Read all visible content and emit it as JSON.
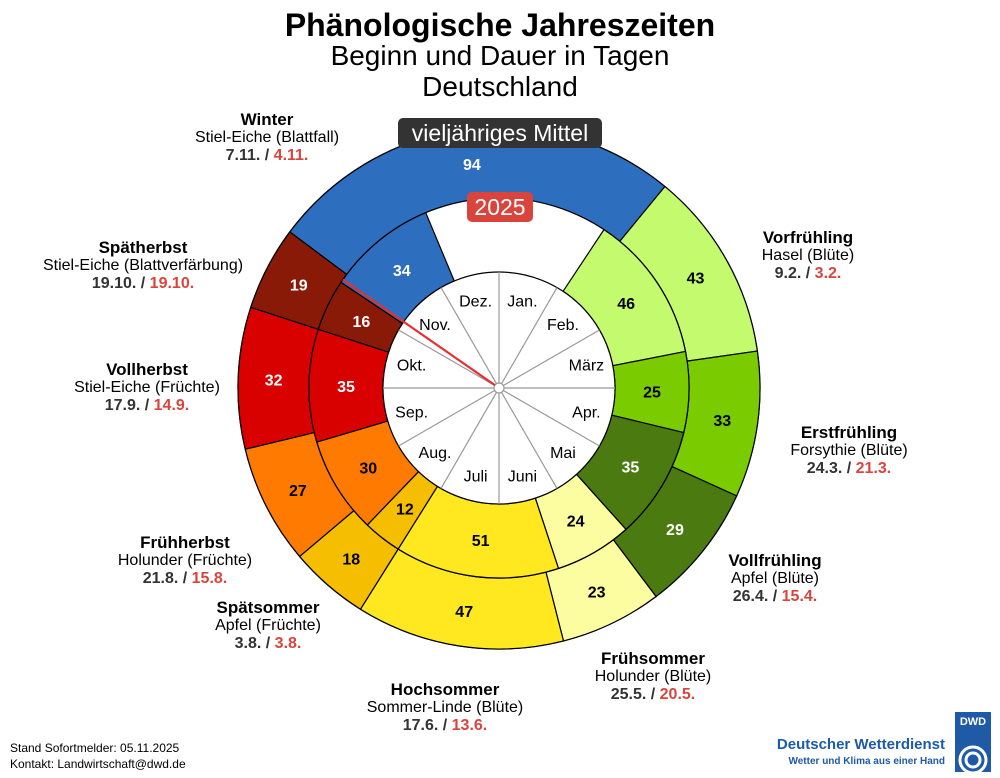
{
  "header": {
    "title": "Phänologische Jahreszeiten",
    "subtitle1": "Beginn und Dauer in Tagen",
    "subtitle2": "Deutschland"
  },
  "ring_labels": {
    "outer": "vieljähriges Mittel",
    "inner": "2025"
  },
  "colors": {
    "outer_label_bg": "#333333",
    "inner_label_bg": "#d9453c",
    "current_marker": "#e53030",
    "date_2025": "#d9453c"
  },
  "chart_data": {
    "type": "radial-bar",
    "months": [
      "Jan.",
      "Feb.",
      "März",
      "Apr.",
      "Mai",
      "Juni",
      "Juli",
      "Aug.",
      "Sep.",
      "Okt.",
      "Nov.",
      "Dez."
    ],
    "current_day_of_year": 309,
    "seasons": [
      {
        "name": "Vorfrühling",
        "indicator": "Hasel (Blüte)",
        "start_mean": "9.2.",
        "start_2025": "3.2.",
        "duration_mean": 43,
        "duration_2025": 46,
        "start_mean_doy": 40,
        "start_2025_doy": 34,
        "color": "#c3fa6e"
      },
      {
        "name": "Erstfrühling",
        "indicator": "Forsythie (Blüte)",
        "start_mean": "24.3.",
        "start_2025": "21.3.",
        "duration_mean": 33,
        "duration_2025": 25,
        "start_mean_doy": 83,
        "start_2025_doy": 80,
        "color": "#7acc00"
      },
      {
        "name": "Vollfrühling",
        "indicator": "Apfel (Blüte)",
        "start_mean": "26.4.",
        "start_2025": "15.4.",
        "duration_mean": 29,
        "duration_2025": 35,
        "start_mean_doy": 116,
        "start_2025_doy": 105,
        "color": "#4a7a10"
      },
      {
        "name": "Frühsommer",
        "indicator": "Holunder (Blüte)",
        "start_mean": "25.5.",
        "start_2025": "20.5.",
        "duration_mean": 23,
        "duration_2025": 24,
        "start_mean_doy": 145,
        "start_2025_doy": 140,
        "color": "#fcfca0"
      },
      {
        "name": "Hochsommer",
        "indicator": "Sommer-Linde (Blüte)",
        "start_mean": "17.6.",
        "start_2025": "13.6.",
        "duration_mean": 47,
        "duration_2025": 51,
        "start_mean_doy": 168,
        "start_2025_doy": 164,
        "color": "#ffe820"
      },
      {
        "name": "Spätsommer",
        "indicator": "Apfel (Früchte)",
        "start_mean": "3.8.",
        "start_2025": "3.8.",
        "duration_mean": 18,
        "duration_2025": 12,
        "start_mean_doy": 215,
        "start_2025_doy": 215,
        "color": "#f5be00"
      },
      {
        "name": "Frühherbst",
        "indicator": "Holunder (Früchte)",
        "start_mean": "21.8.",
        "start_2025": "15.8.",
        "duration_mean": 27,
        "duration_2025": 30,
        "start_mean_doy": 233,
        "start_2025_doy": 227,
        "color": "#ff7a00"
      },
      {
        "name": "Vollherbst",
        "indicator": "Stiel-Eiche (Früchte)",
        "start_mean": "17.9.",
        "start_2025": "14.9.",
        "duration_mean": 32,
        "duration_2025": 35,
        "start_mean_doy": 260,
        "start_2025_doy": 257,
        "color": "#d90000"
      },
      {
        "name": "Spätherbst",
        "indicator": "Stiel-Eiche (Blattverfärbung)",
        "start_mean": "19.10.",
        "start_2025": "19.10.",
        "duration_mean": 19,
        "duration_2025": 16,
        "start_mean_doy": 292,
        "start_2025_doy": 292,
        "color": "#8a1a08"
      },
      {
        "name": "Winter",
        "indicator": "Stiel-Eiche (Blattfall)",
        "start_mean": "7.11.",
        "start_2025": "4.11.",
        "duration_mean": 94,
        "duration_2025": 34,
        "start_mean_doy": 311,
        "start_2025_doy": 308,
        "color": "#2e6ebf"
      }
    ]
  },
  "footer": {
    "stand": "Stand Sofortmelder: 05.11.2025",
    "kontakt": "Kontakt: Landwirtschaft@dwd.de"
  },
  "logo": {
    "abbr": "DWD",
    "name": "Deutscher Wetterdienst",
    "slogan": "Wetter und Klima aus einer Hand"
  }
}
